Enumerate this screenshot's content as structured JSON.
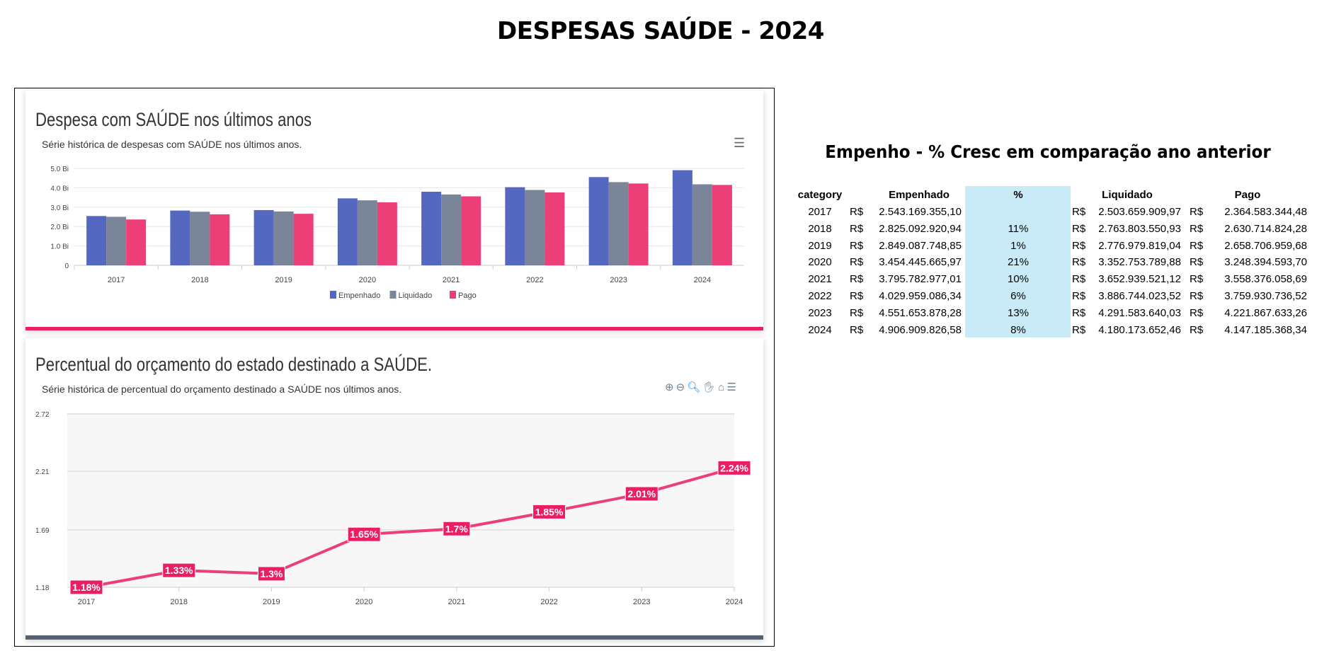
{
  "page_title": "DESPESAS SAÚDE - 2024",
  "colors": {
    "empenhado": "#5468c0",
    "liquidado": "#7a8599",
    "pago": "#ec3f78",
    "line": "#ec3f78",
    "card1_bar": "#e91e63",
    "card2_bar": "#546170",
    "pct_col": "#c9ebf8"
  },
  "chart_data": [
    {
      "type": "bar",
      "title": "Despesa com SAÚDE nos últimos anos",
      "subtitle": "Série histórica de despesas com SAÚDE nos últimos anos.",
      "categories": [
        "2017",
        "2018",
        "2019",
        "2020",
        "2021",
        "2022",
        "2023",
        "2024"
      ],
      "yticks": [
        "0",
        "1.0 Bi",
        "2.0 Bi",
        "3.0 Bi",
        "4.0 Bi",
        "5.0 Bi"
      ],
      "ylim": [
        0,
        5
      ],
      "yunit": "Bi",
      "grid": true,
      "legend": "bottom",
      "series": [
        {
          "name": "Empenhado",
          "values": [
            2.543,
            2.825,
            2.849,
            3.454,
            3.796,
            4.03,
            4.552,
            4.907
          ]
        },
        {
          "name": "Liquidado",
          "values": [
            2.504,
            2.764,
            2.777,
            3.353,
            3.653,
            3.887,
            4.292,
            4.18
          ]
        },
        {
          "name": "Pago",
          "values": [
            2.365,
            2.631,
            2.659,
            3.248,
            3.558,
            3.76,
            4.222,
            4.147
          ]
        }
      ]
    },
    {
      "type": "line",
      "title": "Percentual do orçamento do estado destinado a SAÚDE.",
      "subtitle": "Série histórica de percentual do orçamento destinado a SAÚDE nos últimos anos.",
      "categories": [
        "2017",
        "2018",
        "2019",
        "2020",
        "2021",
        "2022",
        "2023",
        "2024"
      ],
      "values": [
        1.18,
        1.33,
        1.3,
        1.65,
        1.7,
        1.85,
        2.01,
        2.24
      ],
      "labels": [
        "1.18%",
        "1.33%",
        "1.3%",
        "1.65%",
        "1.7%",
        "1.85%",
        "2.01%",
        "2.24%"
      ],
      "yticks": [
        "1.18",
        "1.69",
        "2.21",
        "2.72"
      ],
      "ylim": [
        1.18,
        2.72
      ],
      "grid": true
    }
  ],
  "toolbar_icons": [
    "zoom-in-icon",
    "zoom-out-icon",
    "magnifier-icon",
    "pan-hand-icon",
    "home-icon",
    "menu-icon"
  ],
  "table": {
    "title": "Empenho - % Cresc em comparação ano anterior",
    "headers": [
      "category",
      "Empenhado",
      "%",
      "Liquidado",
      "Pago"
    ],
    "currency": "R$",
    "rows": [
      [
        "2017",
        "2.543.169.355,10",
        "",
        "2.503.659.909,97",
        "2.364.583.344,48"
      ],
      [
        "2018",
        "2.825.092.920,94",
        "11%",
        "2.763.803.550,93",
        "2.630.714.824,28"
      ],
      [
        "2019",
        "2.849.087.748,85",
        "1%",
        "2.776.979.819,04",
        "2.658.706.959,68"
      ],
      [
        "2020",
        "3.454.445.665,97",
        "21%",
        "3.352.753.789,88",
        "3.248.394.593,70"
      ],
      [
        "2021",
        "3.795.782.977,01",
        "10%",
        "3.652.939.521,12",
        "3.558.376.058,69"
      ],
      [
        "2022",
        "4.029.959.086,34",
        "6%",
        "3.886.744.023,52",
        "3.759.930.736,52"
      ],
      [
        "2023",
        "4.551.653.878,28",
        "13%",
        "4.291.583.640,03",
        "4.221.867.633,26"
      ],
      [
        "2024",
        "4.906.909.826,58",
        "8%",
        "4.180.173.652,46",
        "4.147.185.368,34"
      ]
    ]
  }
}
